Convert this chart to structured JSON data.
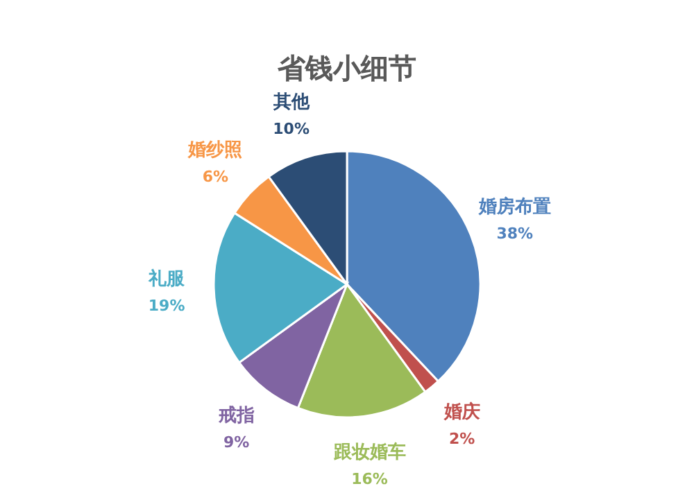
{
  "chart_data": {
    "type": "pie",
    "title": "省钱小细节",
    "categories": [
      "婚房布置",
      "婚庆",
      "跟妆婚车",
      "戒指",
      "礼服",
      "婚纱照",
      "其他"
    ],
    "values": [
      38,
      2,
      16,
      9,
      19,
      6,
      10
    ],
    "value_labels": [
      "38%",
      "2%",
      "16%",
      "9%",
      "19%",
      "6%",
      "10%"
    ],
    "colors": [
      "#4f81bd",
      "#c0504d",
      "#9bbb59",
      "#8064a2",
      "#4bacc6",
      "#f79646",
      "#2c4d75"
    ]
  }
}
